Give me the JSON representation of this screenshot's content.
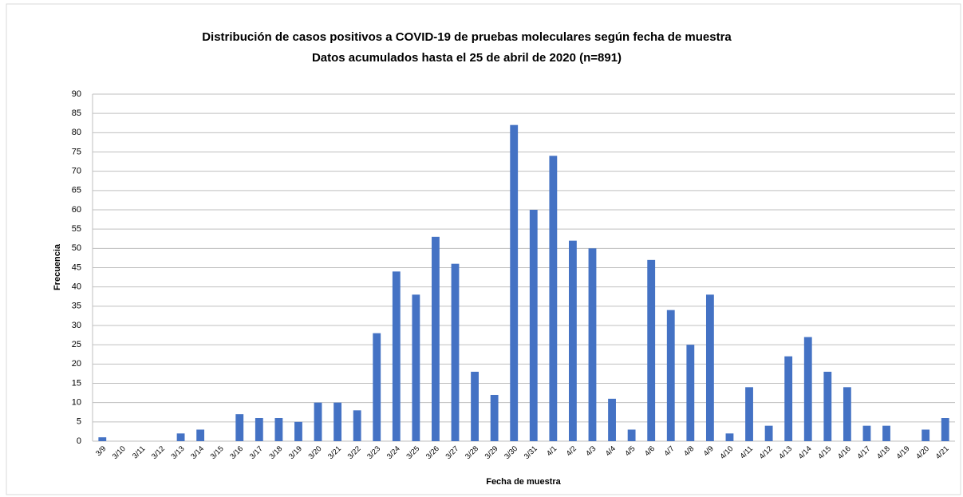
{
  "chart_data": {
    "type": "bar",
    "title": "Distribución de casos positivos a COVID-19 de pruebas moleculares según fecha de muestra",
    "subtitle": "Datos acumulados hasta el 25 de abril de 2020 (n=891)",
    "x_label": "Fecha de muestra",
    "y_label": "Frecuencia",
    "categories": [
      "3/9",
      "3/10",
      "3/11",
      "3/12",
      "3/13",
      "3/14",
      "3/15",
      "3/16",
      "3/17",
      "3/18",
      "3/19",
      "3/20",
      "3/21",
      "3/22",
      "3/23",
      "3/24",
      "3/25",
      "3/26",
      "3/27",
      "3/28",
      "3/29",
      "3/30",
      "3/31",
      "4/1",
      "4/2",
      "4/3",
      "4/4",
      "4/5",
      "4/6",
      "4/7",
      "4/8",
      "4/9",
      "4/10",
      "4/11",
      "4/12",
      "4/13",
      "4/14",
      "4/15",
      "4/16",
      "4/17",
      "4/18",
      "4/19",
      "4/20",
      "4/21"
    ],
    "values": [
      1,
      0,
      0,
      0,
      2,
      3,
      0,
      7,
      6,
      6,
      5,
      10,
      10,
      8,
      28,
      44,
      38,
      53,
      46,
      18,
      12,
      82,
      60,
      74,
      52,
      50,
      11,
      3,
      47,
      34,
      25,
      38,
      2,
      14,
      4,
      22,
      27,
      18,
      14,
      4,
      4,
      0,
      3,
      6
    ],
    "color": "#4472c4",
    "ylim": [
      0,
      90
    ],
    "yticks": [
      0,
      5,
      10,
      15,
      20,
      25,
      30,
      35,
      40,
      45,
      50,
      55,
      60,
      65,
      70,
      75,
      80,
      85,
      90
    ],
    "grid": true
  }
}
